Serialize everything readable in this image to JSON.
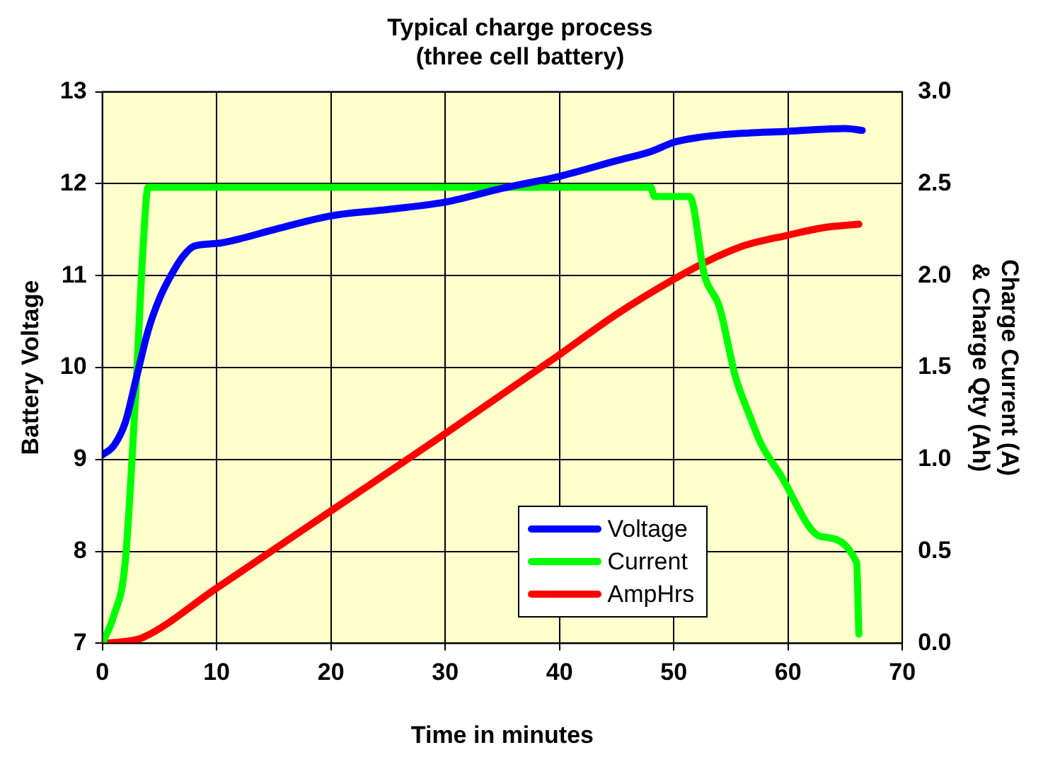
{
  "chart_data": {
    "type": "line",
    "title": "Typical charge process\n(three cell battery)",
    "xlabel": "Time in minutes",
    "ylabel": "Battery Voltage",
    "y2label": "Charge Current (A)\n& Charge Qty (Ah)",
    "xlim": [
      0,
      70
    ],
    "xticks": [
      0,
      10,
      20,
      30,
      40,
      50,
      60,
      70
    ],
    "ylim": [
      7,
      13
    ],
    "yticks": [
      7,
      8,
      9,
      10,
      11,
      12,
      13
    ],
    "y2lim": [
      0,
      3
    ],
    "y2ticks": [
      {
        "value": 0,
        "label": "0.0"
      },
      {
        "value": 0.5,
        "label": "0.5"
      },
      {
        "value": 1,
        "label": "1.0"
      },
      {
        "value": 1.5,
        "label": "1.5"
      },
      {
        "value": 2,
        "label": "2.0"
      },
      {
        "value": 2.5,
        "label": "2.5"
      },
      {
        "value": 3,
        "label": "3.0"
      }
    ],
    "grid": true,
    "legend": "bottom right",
    "marker": "none",
    "line_style": "solid",
    "series": [
      {
        "name": "Voltage",
        "color": "#0000ff",
        "x": [
          0,
          1,
          2,
          3,
          4,
          5,
          6,
          7,
          8,
          10,
          12,
          15,
          20,
          25,
          30,
          35,
          40,
          45,
          48,
          50,
          52,
          55,
          60,
          65,
          66.5
        ],
        "values": [
          9.05,
          9.15,
          9.4,
          9.9,
          10.4,
          10.75,
          11.0,
          11.2,
          11.32,
          11.35,
          11.4,
          11.5,
          11.65,
          11.72,
          11.8,
          11.95,
          12.08,
          12.25,
          12.35,
          12.45,
          12.5,
          12.54,
          12.57,
          12.6,
          12.58
        ]
      },
      {
        "name": "Current",
        "color": "#00ff00",
        "axis": "y2",
        "x": [
          0,
          1,
          2,
          2.9,
          3.6,
          4,
          48,
          48.3,
          51.4,
          52.7,
          54,
          55.4,
          56.7,
          57.6,
          59.3,
          62.9,
          66,
          66.2
        ],
        "values": [
          0,
          0.15,
          0.44,
          1.34,
          2.19,
          2.48,
          2.48,
          2.43,
          2.43,
          2.0,
          1.83,
          1.45,
          1.23,
          1.09,
          0.92,
          0.58,
          0.44,
          0.05
        ]
      },
      {
        "name": "AmpHrs",
        "color": "#ff0000",
        "axis": "y2",
        "x": [
          0,
          2,
          3.5,
          10,
          20,
          30,
          40,
          45,
          50,
          53,
          56,
          60,
          63,
          66.2
        ],
        "values": [
          0,
          0.01,
          0.03,
          0.3,
          0.72,
          1.14,
          1.57,
          1.79,
          1.98,
          2.08,
          2.16,
          2.22,
          2.26,
          2.28
        ]
      }
    ]
  }
}
